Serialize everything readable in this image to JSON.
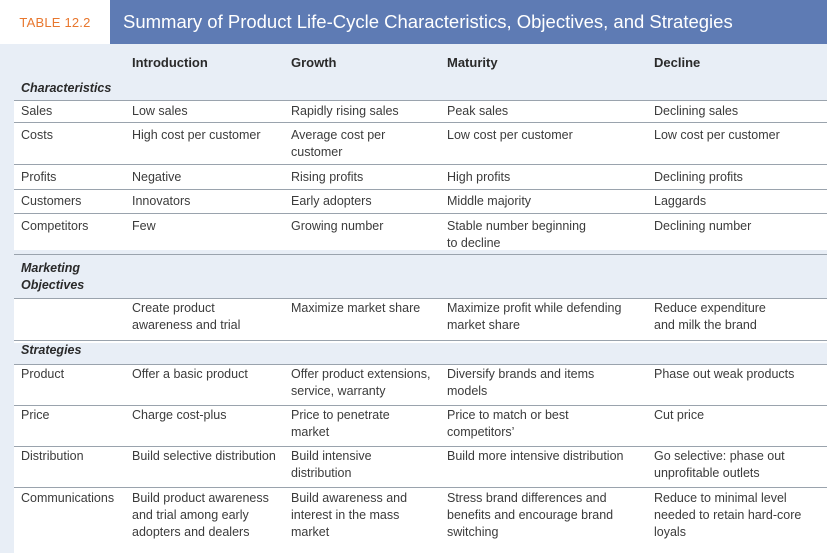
{
  "header": {
    "tag": "TABLE 12.2",
    "title": "Summary of Product Life-Cycle Characteristics, Objectives, and Strategies"
  },
  "columns": [
    "Introduction",
    "Growth",
    "Maturity",
    "Decline"
  ],
  "sections": {
    "characteristics": "Characteristics",
    "objectives": "Marketing Objectives",
    "strategies": "Strategies"
  },
  "characteristics": [
    {
      "label": "Sales",
      "intro": "Low sales",
      "growth": "Rapidly rising sales",
      "maturity": "Peak sales",
      "decline": "Declining sales"
    },
    {
      "label": "Costs",
      "intro": "High cost per customer",
      "growth": "Average cost per customer",
      "maturity": "Low cost per customer",
      "decline": "Low cost per customer"
    },
    {
      "label": "Profits",
      "intro": "Negative",
      "growth": "Rising profits",
      "maturity": "High profits",
      "decline": "Declining profits"
    },
    {
      "label": "Customers",
      "intro": "Innovators",
      "growth": "Early adopters",
      "maturity": "Middle majority",
      "decline": "Laggards"
    },
    {
      "label": "Competitors",
      "intro": "Few",
      "growth": "Growing number",
      "maturity": "Stable number beginning to decline",
      "decline": "Declining number"
    }
  ],
  "objectives": {
    "intro": "Create product awareness and trial",
    "growth": "Maximize market share",
    "maturity": "Maximize profit while defending market share",
    "decline": "Reduce expenditure and milk the brand"
  },
  "strategies": [
    {
      "label": "Product",
      "intro": "Offer a basic product",
      "growth": "Offer product extensions, service, warranty",
      "maturity": "Diversify brands and items models",
      "decline": "Phase out weak products"
    },
    {
      "label": "Price",
      "intro": "Charge cost-plus",
      "growth": "Price to penetrate market",
      "maturity": "Price to match or best competitors’",
      "decline": "Cut price"
    },
    {
      "label": "Distribution",
      "intro": "Build selective distribution",
      "growth": "Build intensive distribution",
      "maturity": "Build more intensive distribution",
      "decline": "Go selective: phase out unprofitable outlets"
    },
    {
      "label": "Communications",
      "intro": "Build product awareness and trial among early adopters and dealers",
      "growth": "Build awareness and interest in the mass market",
      "maturity": "Stress brand differences and benefits and encourage brand switching",
      "decline": "Reduce to minimal level needed to retain hard-core loyals"
    }
  ]
}
